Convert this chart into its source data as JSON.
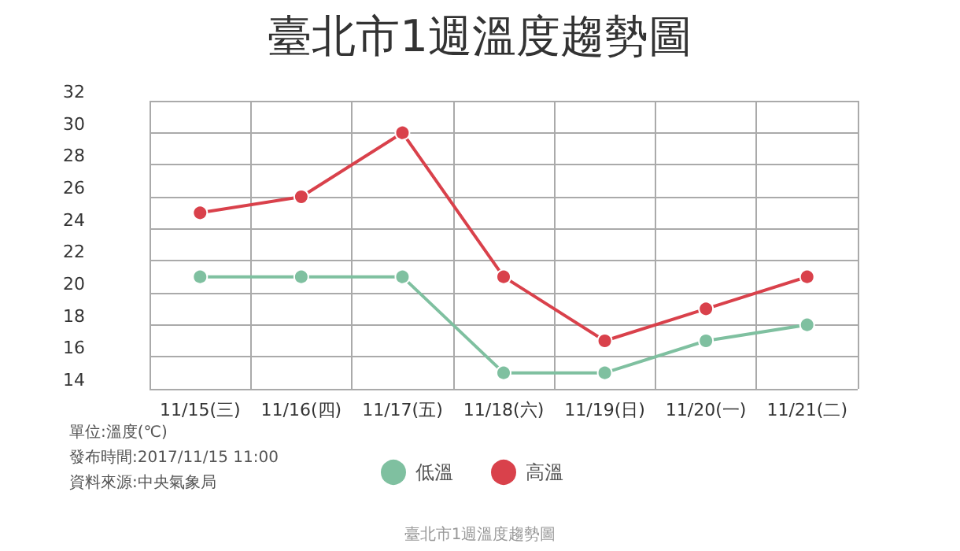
{
  "chart_data": {
    "type": "line",
    "title": "臺北市1週溫度趨勢圖",
    "categories": [
      "11/15(三)",
      "11/16(四)",
      "11/17(五)",
      "11/18(六)",
      "11/19(日)",
      "11/20(一)",
      "11/21(二)"
    ],
    "series": [
      {
        "name": "低溫",
        "color": "#7fc0a0",
        "values": [
          21,
          21,
          21,
          15,
          15,
          17,
          18
        ]
      },
      {
        "name": "高溫",
        "color": "#d9414b",
        "values": [
          25,
          26,
          30,
          21,
          17,
          19,
          21
        ]
      }
    ],
    "ylim": [
      14,
      32
    ],
    "yticks": [
      14,
      16,
      18,
      20,
      22,
      24,
      26,
      28,
      30,
      32
    ],
    "grid": true,
    "legend": "bottom",
    "marker": "circle",
    "line_style": "solid",
    "annotations": [
      "單位:溫度(℃)",
      "發布時間:2017/11/15 11:00",
      "資料來源:中央氣象局",
      "臺北市1週溫度趨勢圖"
    ]
  }
}
